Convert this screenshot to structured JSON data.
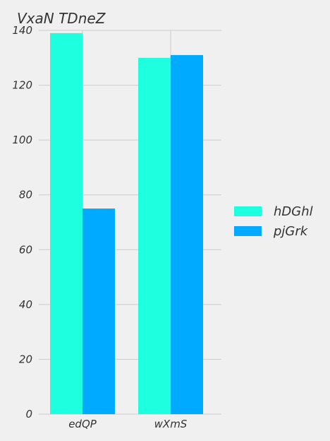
{
  "chart_data": {
    "type": "bar",
    "title": "VxaN TDneZ",
    "xlabel": "",
    "ylabel": "",
    "categories": [
      "edQP",
      "wXmS"
    ],
    "series": [
      {
        "name": "hDGhl",
        "values": [
          139,
          130
        ],
        "color": "#1effdf"
      },
      {
        "name": "pjGrk",
        "values": [
          75,
          131
        ],
        "color": "#00aaff"
      }
    ],
    "ylim": [
      0,
      140
    ],
    "yticks": [
      "0",
      "20",
      "40",
      "60",
      "80",
      "100",
      "120",
      "140"
    ],
    "grid": true,
    "legend_position": "right"
  }
}
